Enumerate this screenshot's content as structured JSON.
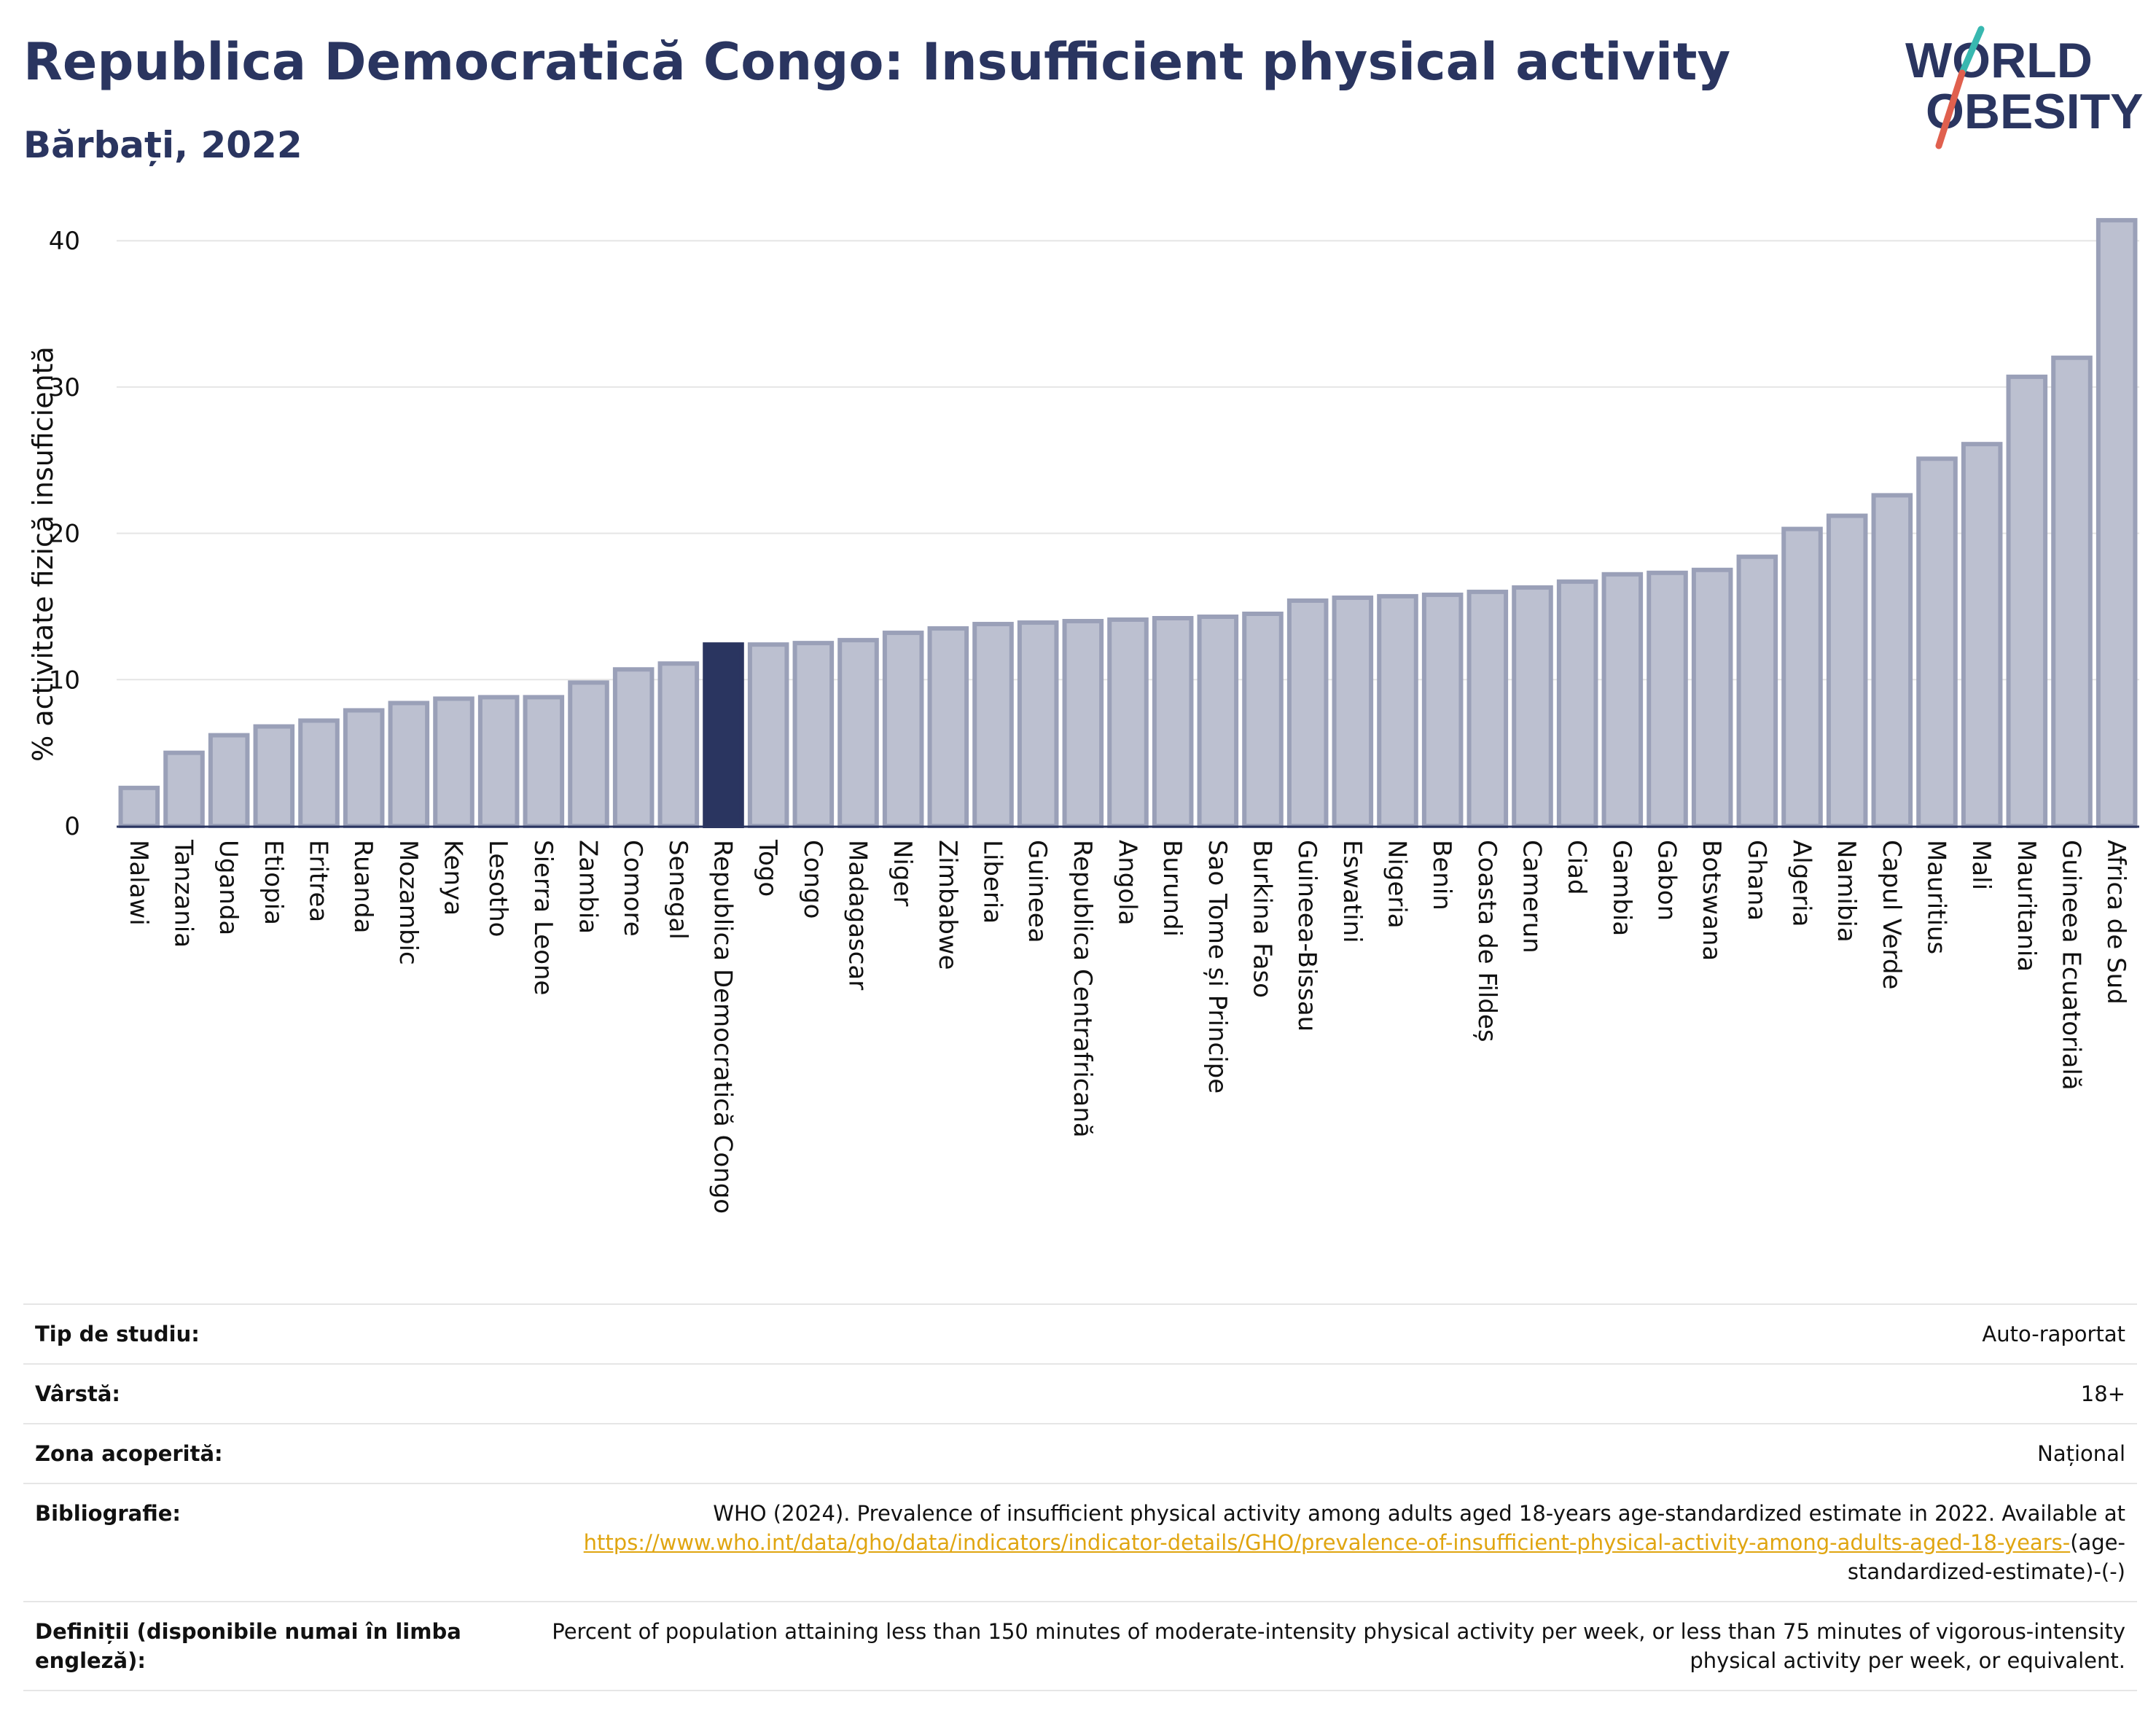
{
  "header": {
    "title": "Republica Democratică Congo: Insufficient physical activity",
    "subtitle": "Bărbați, 2022"
  },
  "logo": {
    "line1": "WORLD",
    "line2": "OBESITY"
  },
  "colors": {
    "bar": "#bcc0d0",
    "bar_stroke": "#9aa0b8",
    "highlight": "#2a3560",
    "grid": "#e5e5e5",
    "accent_teal": "#38b8b0",
    "accent_red": "#e0604e"
  },
  "chart_data": {
    "type": "bar",
    "title": "Republica Democratică Congo: Insufficient physical activity",
    "ylabel": "% activitate fizică insuficientă",
    "xlabel": "",
    "ylim": [
      0,
      43
    ],
    "yticks": [
      0,
      10,
      20,
      30,
      40
    ],
    "grid": true,
    "highlight": "Republica Democratică Congo",
    "categories": [
      "Malawi",
      "Tanzania",
      "Uganda",
      "Etiopia",
      "Eritrea",
      "Ruanda",
      "Mozambic",
      "Kenya",
      "Lesotho",
      "Sierra Leone",
      "Zambia",
      "Comore",
      "Senegal",
      "Republica Democratică Congo",
      "Togo",
      "Congo",
      "Madagascar",
      "Niger",
      "Zimbabwe",
      "Liberia",
      "Guineea",
      "Republica Centrafricană",
      "Angola",
      "Burundi",
      "Sao Tome și Principe",
      "Burkina Faso",
      "Guineea-Bissau",
      "Eswatini",
      "Nigeria",
      "Benin",
      "Coasta de Fildeș",
      "Camerun",
      "Ciad",
      "Gambia",
      "Gabon",
      "Botswana",
      "Ghana",
      "Algeria",
      "Namibia",
      "Capul Verde",
      "Mauritius",
      "Mali",
      "Mauritania",
      "Guineea Ecuatorială",
      "Africa de Sud"
    ],
    "values": [
      2.6,
      5.0,
      6.2,
      6.8,
      7.2,
      7.9,
      8.4,
      8.7,
      8.8,
      8.8,
      9.8,
      10.7,
      11.1,
      12.4,
      12.4,
      12.5,
      12.7,
      13.2,
      13.5,
      13.8,
      13.9,
      14.0,
      14.1,
      14.2,
      14.3,
      14.5,
      15.4,
      15.6,
      15.7,
      15.8,
      16.0,
      16.3,
      16.7,
      17.2,
      17.3,
      17.5,
      18.4,
      20.3,
      21.2,
      22.6,
      25.1,
      26.1,
      30.7,
      32.0,
      41.4
    ]
  },
  "meta": {
    "study_type_label": "Tip de studiu:",
    "study_type_value": "Auto-raportat",
    "age_label": "Vârstă:",
    "age_value": "18+",
    "area_label": "Zona acoperită:",
    "area_value": "Național",
    "bib_label": "Bibliografie:",
    "bib_text": "WHO (2024). Prevalence of insufficient physical activity among adults aged 18-years age-standardized estimate in 2022. Available at",
    "bib_link": "https://www.who.int/data/gho/data/indicators/indicator-details/GHO/prevalence-of-insufficient-physical-activity-among-adults-aged-18-years-",
    "bib_tail": "(age-standardized-estimate)-(-)",
    "def_label": "Definiții (disponibile numai în limba engleză):",
    "def_text": "Percent of population attaining less than 150 minutes of moderate-intensity physical activity per week, or less than 75 minutes of vigorous-intensity physical activity per week, or equivalent."
  }
}
